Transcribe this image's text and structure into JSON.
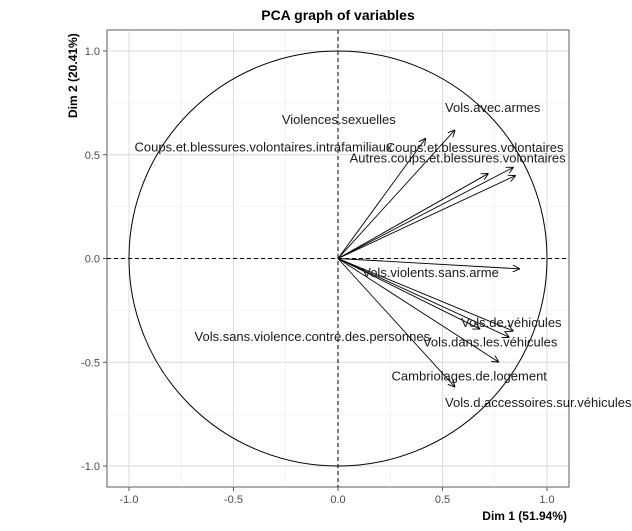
{
  "chart_data": {
    "type": "scatter",
    "title": "PCA graph of variables",
    "xlabel": "Dim 1 (51.94%)",
    "ylabel": "Dim 2 (20.41%)",
    "xlim": [
      -1.1,
      1.1
    ],
    "ylim": [
      -1.1,
      1.1
    ],
    "x_ticks": [
      "-1.0",
      "-0.5",
      "0.0",
      "0.5",
      "1.0"
    ],
    "y_ticks": [
      "-1.0",
      "-0.5",
      "0.0",
      "0.5",
      "1.0"
    ],
    "grid": true,
    "unit_circle": true,
    "variables": [
      {
        "name": "Violences.sexuelles",
        "x": 0.42,
        "y": 0.58
      },
      {
        "name": "Vols.avec.armes",
        "x": 0.56,
        "y": 0.62
      },
      {
        "name": "Coups.et.blessures.volontaires.intrafamiliaux",
        "x": 0.72,
        "y": 0.41
      },
      {
        "name": "Coups.et.blessures.volontaires",
        "x": 0.84,
        "y": 0.44
      },
      {
        "name": "Autres.coups.et.blessures.volontaires",
        "x": 0.85,
        "y": 0.4
      },
      {
        "name": "Vols.violents.sans.arme",
        "x": 0.87,
        "y": -0.05
      },
      {
        "name": "Vols.sans.violence.contre.des.personnes",
        "x": 0.68,
        "y": -0.34
      },
      {
        "name": "Vols.de.véhicules",
        "x": 0.84,
        "y": -0.35
      },
      {
        "name": "Vols.dans.les.véhicules",
        "x": 0.82,
        "y": -0.38
      },
      {
        "name": "Cambriolages.de.logement",
        "x": 0.77,
        "y": -0.5
      },
      {
        "name": "Vols.d.accessoires.sur.véhicules",
        "x": 0.56,
        "y": -0.62
      }
    ]
  }
}
